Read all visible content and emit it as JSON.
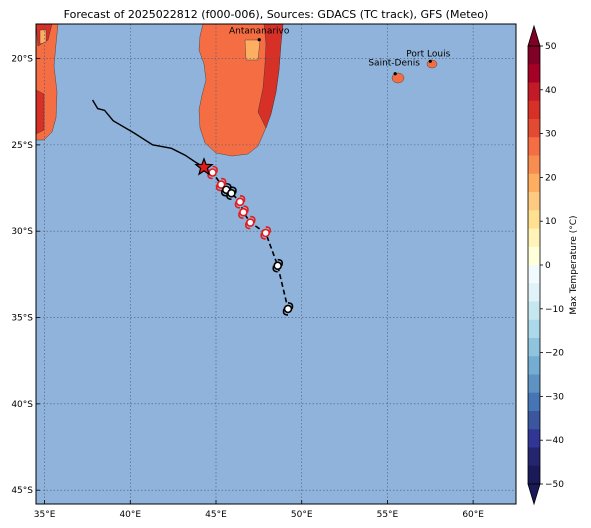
{
  "title": "Forecast of 2025022812 (f000-006), Sources: GDACS (TC track), GFS (Meteo)",
  "colors": {
    "ocean": "#8fb3da",
    "land_warm": "#f46d43",
    "land_hot": "#d73027",
    "land_mild": "#fdae61",
    "track": "#000000",
    "storm_red": "#e41a1c"
  },
  "map": {
    "lon_range": [
      34.5,
      62.5
    ],
    "lat_range": [
      -45.8,
      -18.0
    ],
    "lon_ticks": [
      35,
      40,
      45,
      50,
      55,
      60
    ],
    "lat_ticks": [
      -20,
      -25,
      -30,
      -35,
      -40,
      -45
    ],
    "lon_tick_labels": [
      "35°E",
      "40°E",
      "45°E",
      "50°E",
      "55°E",
      "60°E"
    ],
    "lat_tick_labels": [
      "20°S",
      "25°S",
      "30°S",
      "35°S",
      "40°S",
      "45°S"
    ],
    "grid": true
  },
  "cities": [
    {
      "name": "Antananarivo",
      "lon": 47.52,
      "lat": -18.91
    },
    {
      "name": "Port Louis",
      "lon": 57.5,
      "lat": -20.16
    },
    {
      "name": "Saint-Denis",
      "lon": 55.45,
      "lat": -20.88
    }
  ],
  "track": {
    "history": [
      [
        37.8,
        -22.4
      ],
      [
        38.1,
        -22.9
      ],
      [
        38.5,
        -23.0
      ],
      [
        39.0,
        -23.6
      ],
      [
        40.2,
        -24.3
      ],
      [
        41.3,
        -25.0
      ],
      [
        42.4,
        -25.2
      ],
      [
        43.2,
        -25.6
      ],
      [
        43.8,
        -26.0
      ],
      [
        44.3,
        -26.3
      ]
    ],
    "current": {
      "lon": 44.3,
      "lat": -26.3
    },
    "forecast": [
      {
        "lon": 44.8,
        "lat": -26.6,
        "marker": "red"
      },
      {
        "lon": 45.3,
        "lat": -27.3,
        "marker": "red"
      },
      {
        "lon": 45.6,
        "lat": -27.6,
        "marker": "black"
      },
      {
        "lon": 45.9,
        "lat": -27.8,
        "marker": "black"
      },
      {
        "lon": 46.4,
        "lat": -28.3,
        "marker": "red"
      },
      {
        "lon": 46.6,
        "lat": -28.9,
        "marker": "red"
      },
      {
        "lon": 47.0,
        "lat": -29.5,
        "marker": "red"
      },
      {
        "lon": 47.9,
        "lat": -30.1,
        "marker": "red"
      },
      {
        "lon": 48.6,
        "lat": -32.0,
        "marker": "black"
      },
      {
        "lon": 49.2,
        "lat": -34.5,
        "marker": "black"
      }
    ]
  },
  "colorbar": {
    "label": "Max Temperature (°C)",
    "ticks": [
      50,
      40,
      30,
      20,
      10,
      0,
      -10,
      -20,
      -30,
      -40,
      -50
    ],
    "tick_labels": [
      "50",
      "40",
      "30",
      "20",
      "10",
      "0",
      "−10",
      "−20",
      "−30",
      "−40",
      "−50"
    ],
    "colors": [
      "#a50026",
      "#d73027",
      "#f46d43",
      "#fdae61",
      "#fee090",
      "#ffffbf",
      "#e0f3f8",
      "#abd9e9",
      "#74add1",
      "#4575b4",
      "#313695"
    ],
    "segments_top_to_bottom": [
      "#800026",
      "#a50026",
      "#c21a27",
      "#d73027",
      "#e34a33",
      "#f46d43",
      "#f88d52",
      "#fdae61",
      "#fec980",
      "#fee090",
      "#fff3b8",
      "#ffffd9",
      "#f0faff",
      "#e0f3f8",
      "#c6e6f0",
      "#abd9e9",
      "#90c3dd",
      "#74add1",
      "#5d92c2",
      "#4575b4",
      "#3b559f",
      "#313695",
      "#25246e",
      "#1a1a5a"
    ]
  }
}
